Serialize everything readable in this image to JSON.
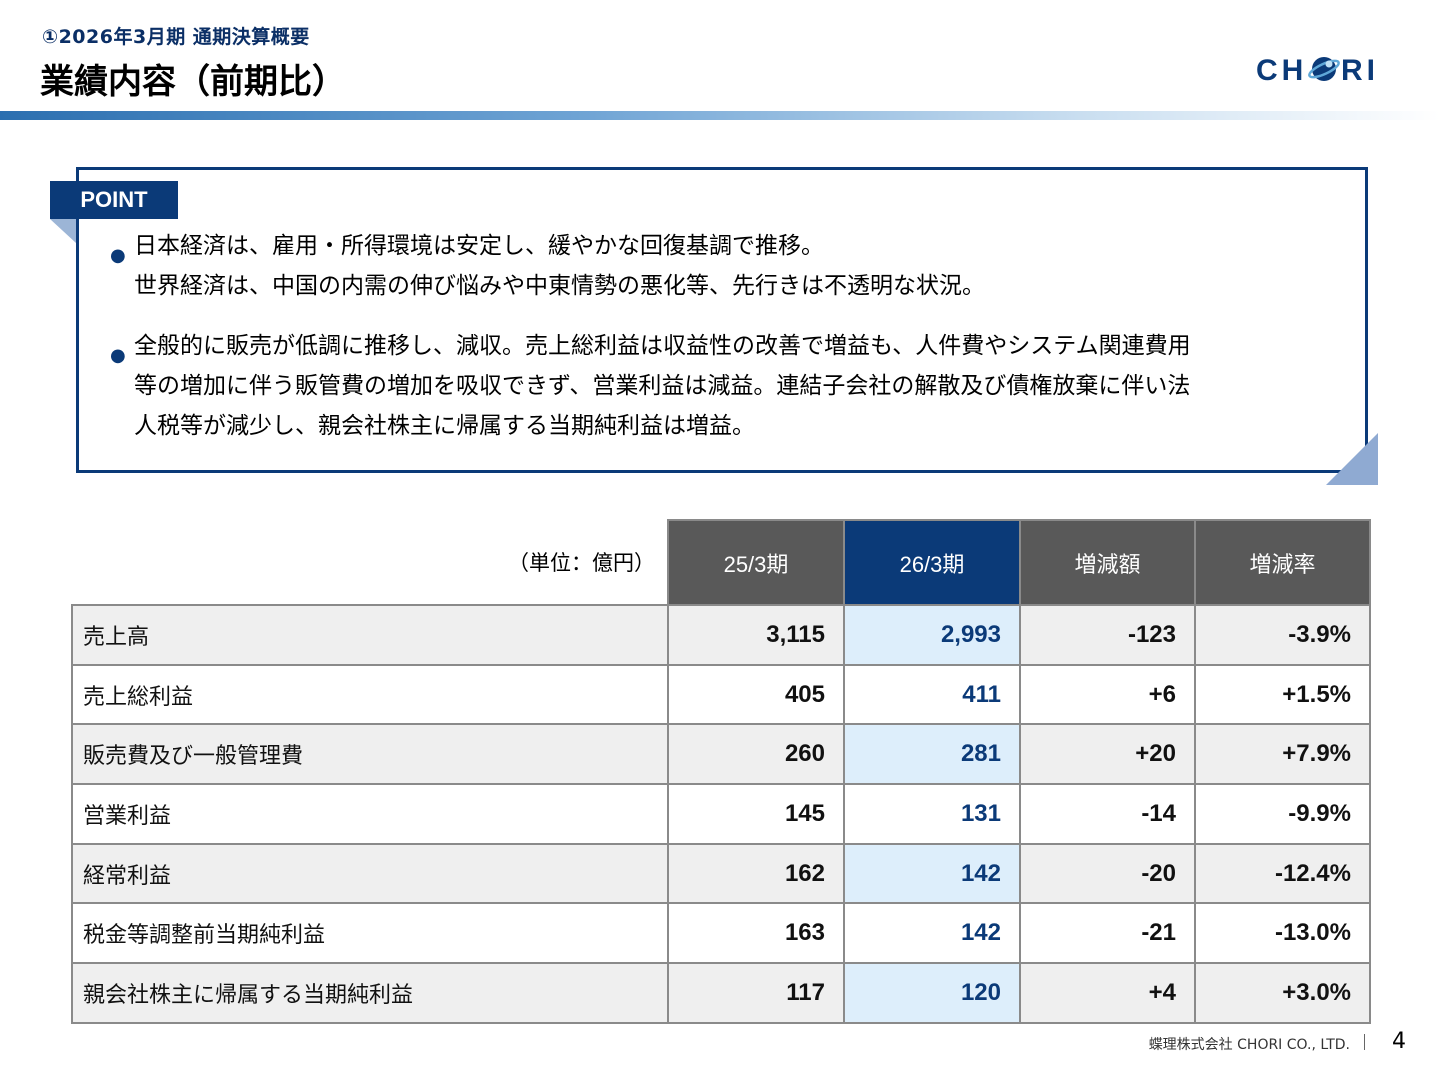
{
  "header": {
    "subtitle": "①2026年3月期 通期決算概要",
    "title": "業績内容（前期比）",
    "logo_text": "CHORI",
    "accent": "#0b3a78"
  },
  "point": {
    "tab_label": "POINT",
    "bullets": [
      [
        "日本経済は、雇用・所得環境は安定し、緩やかな回復基調で推移。",
        "世界経済は、中国の内需の伸び悩みや中東情勢の悪化等、先行きは不透明な状況。"
      ],
      [
        "全般的に販売が低調に推移し、減収。売上総利益は収益性の改善で増益も、人件費やシステム関連費用",
        "等の増加に伴う販管費の増加を吸収できず、営業利益は減益。連結子会社の解散及び債権放棄に伴い法",
        "人税等が減少し、親会社株主に帰属する当期純利益は増益。"
      ]
    ]
  },
  "table": {
    "unit": "（単位：億円）",
    "headers": [
      "25/3期",
      "26/3期",
      "増減額",
      "増減率"
    ],
    "rows": [
      {
        "label": "売上高",
        "prev": "3,115",
        "curr": "2,993",
        "diff": "-123",
        "rate": "-3.9%"
      },
      {
        "label": "売上総利益",
        "prev": "405",
        "curr": "411",
        "diff": "+6",
        "rate": "+1.5%"
      },
      {
        "label": "販売費及び一般管理費",
        "prev": "260",
        "curr": "281",
        "diff": "+20",
        "rate": "+7.9%"
      },
      {
        "label": "営業利益",
        "prev": "145",
        "curr": "131",
        "diff": "-14",
        "rate": "-9.9%"
      },
      {
        "label": "経常利益",
        "prev": "162",
        "curr": "142",
        "diff": "-20",
        "rate": "-12.4%"
      },
      {
        "label": "税金等調整前当期純利益",
        "prev": "163",
        "curr": "142",
        "diff": "-21",
        "rate": "-13.0%"
      },
      {
        "label": "親会社株主に帰属する当期純利益",
        "prev": "117",
        "curr": "120",
        "diff": "+4",
        "rate": "+3.0%"
      }
    ]
  },
  "footer": {
    "company": "蝶理株式会社 CHORI CO., LTD.",
    "page": "4"
  }
}
